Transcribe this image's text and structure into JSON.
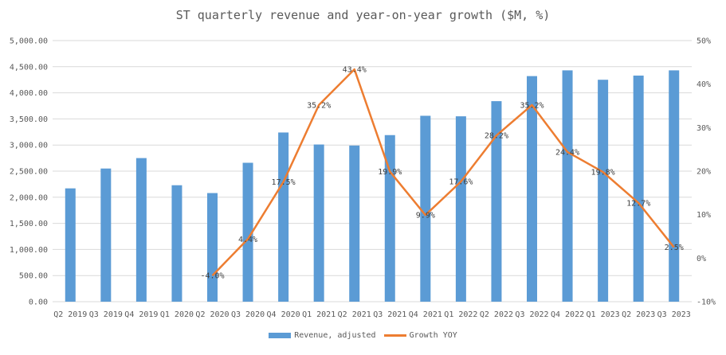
{
  "chart_data": {
    "type": "bar",
    "title": "ST quarterly revenue and year-on-year growth ($M, %)",
    "categories": [
      "Q2 2019",
      "Q3 2019",
      "Q4 2019",
      "Q1 2020",
      "Q2 2020",
      "Q3 2020",
      "Q4 2020",
      "Q1 2021",
      "Q2 2021",
      "Q3 2021",
      "Q4 2021",
      "Q1 2022",
      "Q2 2022",
      "Q3 2022",
      "Q4 2022",
      "Q1 2023",
      "Q2 2023",
      "Q3 2023"
    ],
    "series": [
      {
        "name": "Revenue, adjusted",
        "type": "bar",
        "axis": "left",
        "color": "#5B9BD5",
        "values": [
          2170,
          2550,
          2750,
          2230,
          2080,
          2660,
          3240,
          3010,
          2990,
          3190,
          3560,
          3550,
          3840,
          4320,
          4430,
          4250,
          4330,
          4430
        ]
      },
      {
        "name": "Growth YOY",
        "type": "line",
        "axis": "right",
        "color": "#ED7D31",
        "values": [
          null,
          null,
          null,
          null,
          -4.0,
          4.4,
          17.5,
          35.2,
          43.4,
          19.9,
          9.9,
          17.6,
          28.2,
          35.2,
          24.4,
          19.8,
          12.7,
          2.5
        ],
        "labels": [
          "",
          "",
          "",
          "",
          "-4.0%",
          "4.4%",
          "17.5%",
          "35.2%",
          "43.4%",
          "19.9%",
          "9.9%",
          "17.6%",
          "28.2%",
          "35.2%",
          "24.4%",
          "19.8%",
          "12.7%",
          "2.5%"
        ]
      }
    ],
    "y_left": {
      "min": 0,
      "max": 5000,
      "ticks": [
        "0.00",
        "500.00",
        "1,000.00",
        "1,500.00",
        "2,000.00",
        "2,500.00",
        "3,000.00",
        "3,500.00",
        "4,000.00",
        "4,500.00",
        "5,000.00"
      ]
    },
    "y_right": {
      "min": -10,
      "max": 50,
      "ticks": [
        "-10%",
        "0%",
        "10%",
        "20%",
        "30%",
        "40%",
        "50%"
      ]
    },
    "grid": true,
    "legend_position": "bottom"
  },
  "legend": {
    "bar_label": "Revenue, adjusted",
    "line_label": "Growth YOY"
  }
}
